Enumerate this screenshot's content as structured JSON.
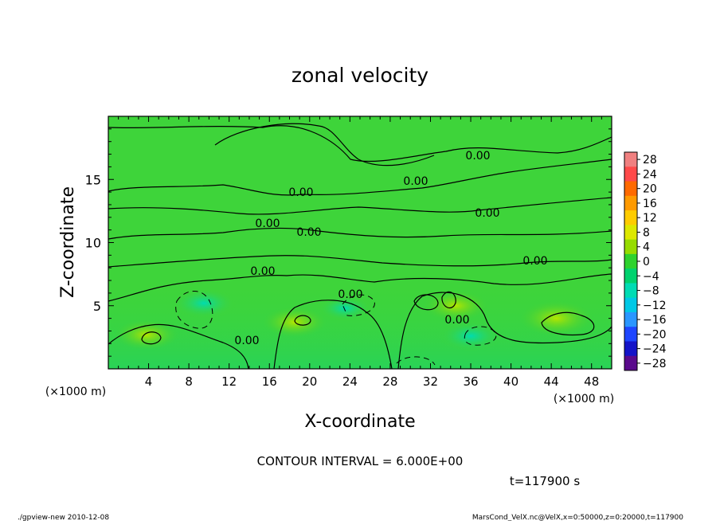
{
  "chart_data": {
    "type": "heatmap",
    "title": "zonal velocity",
    "xlabel": "X-coordinate",
    "ylabel": "Z-coordinate",
    "x_unit": "(×1000 m)",
    "y_unit": "(×1000 m)",
    "xlim": [
      0,
      50
    ],
    "ylim": [
      0,
      20
    ],
    "x_ticks": [
      "4",
      "8",
      "12",
      "16",
      "20",
      "24",
      "28",
      "32",
      "36",
      "40",
      "44",
      "48"
    ],
    "y_ticks": [
      "5",
      "10",
      "15"
    ],
    "contour_labels": [
      "0.00",
      "0.00",
      "0.00",
      "0.00",
      "0.00",
      "0.00",
      "0.00",
      "0.00",
      "0.00",
      "0.00",
      "0.00"
    ],
    "colorbar": {
      "levels": [
        "28",
        "24",
        "20",
        "16",
        "12",
        "8",
        "4",
        "0",
        "−4",
        "−8",
        "−12",
        "−16",
        "−20",
        "−24",
        "−28"
      ],
      "colors": [
        "#f08080",
        "#ff4a4a",
        "#ff6a00",
        "#ff9a00",
        "#ffcc00",
        "#dde800",
        "#96dc00",
        "#2ed22e",
        "#00d26e",
        "#00dcb4",
        "#00c8e6",
        "#2a96ff",
        "#1e46ff",
        "#1414c8",
        "#5a0a8c"
      ]
    },
    "features": [
      {
        "x": 44.5,
        "z": 4.0,
        "value": 8
      },
      {
        "x": 34.5,
        "z": 5.0,
        "value": 6
      },
      {
        "x": 18.5,
        "z": 3.7,
        "value": 6
      },
      {
        "x": 3.8,
        "z": 2.7,
        "value": 6
      },
      {
        "x": 9.5,
        "z": 5.2,
        "value": -6
      },
      {
        "x": 36.0,
        "z": 2.6,
        "value": -6
      },
      {
        "x": 23.5,
        "z": 4.8,
        "value": -4
      }
    ],
    "contour_interval": "CONTOUR INTERVAL = 6.000E+00",
    "time": "t=117900 s"
  },
  "footer": {
    "left": "./gpview-new   2010-12-08",
    "right": "MarsCond_VelX.nc@VelX,x=0:50000,z=0:20000,t=117900"
  }
}
